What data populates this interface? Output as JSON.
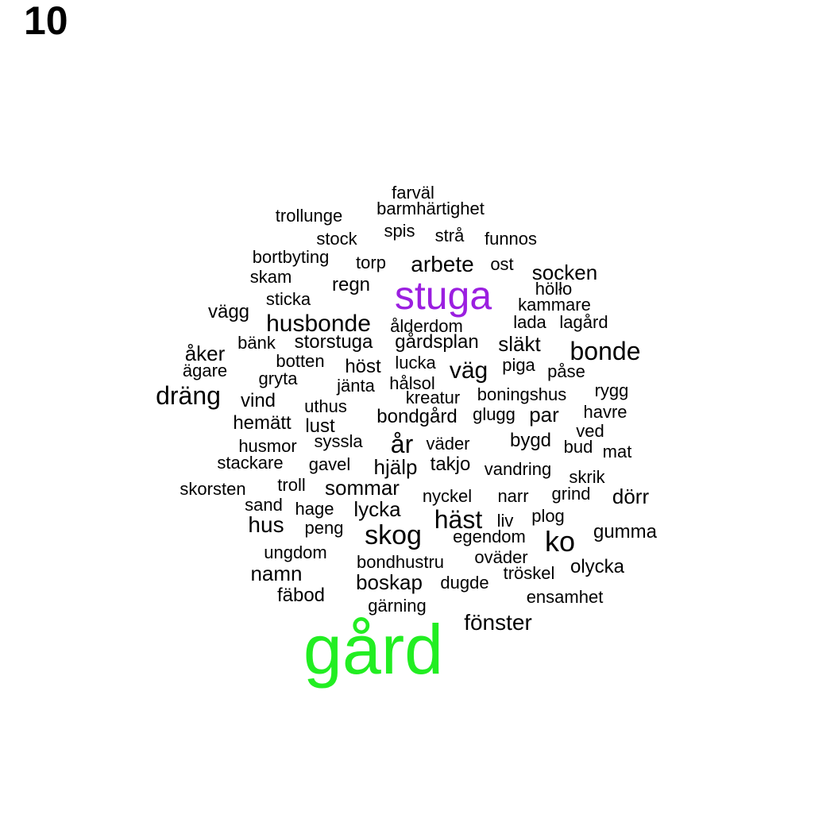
{
  "panel_label": "10",
  "colors": {
    "default": "#000000",
    "gård": "#22ee22",
    "stuga": "#9b1fe0"
  },
  "words": [
    {
      "text": "gård",
      "color": "gård"
    },
    {
      "text": "stuga",
      "color": "stuga"
    },
    {
      "text": "fönster"
    },
    {
      "text": "ko"
    },
    {
      "text": "skog"
    },
    {
      "text": "häst"
    },
    {
      "text": "bonde"
    },
    {
      "text": "dräng"
    },
    {
      "text": "år"
    },
    {
      "text": "husbonde"
    },
    {
      "text": "arbete"
    },
    {
      "text": "väg"
    },
    {
      "text": "hus"
    },
    {
      "text": "namn"
    },
    {
      "text": "dörr"
    },
    {
      "text": "sommar"
    },
    {
      "text": "hjälp"
    },
    {
      "text": "boskap"
    },
    {
      "text": "lycka"
    },
    {
      "text": "socken"
    },
    {
      "text": "släkt"
    },
    {
      "text": "bygd"
    },
    {
      "text": "gumma"
    },
    {
      "text": "olycka"
    },
    {
      "text": "par"
    },
    {
      "text": "åker"
    },
    {
      "text": "regn"
    },
    {
      "text": "vind"
    },
    {
      "text": "höst"
    },
    {
      "text": "vägg"
    },
    {
      "text": "lust"
    },
    {
      "text": "takjo"
    },
    {
      "text": "hemätt"
    },
    {
      "text": "bondgård"
    },
    {
      "text": "storstuga"
    },
    {
      "text": "gårdsplan"
    },
    {
      "text": "fäbod"
    },
    {
      "text": "husmor"
    },
    {
      "text": "ungdom"
    },
    {
      "text": "bondhustru"
    },
    {
      "text": "farväl"
    },
    {
      "text": "barmhärtighet"
    },
    {
      "text": "trollunge"
    },
    {
      "text": "spis"
    },
    {
      "text": "strå"
    },
    {
      "text": "stock"
    },
    {
      "text": "funnos"
    },
    {
      "text": "bortbyting"
    },
    {
      "text": "torp"
    },
    {
      "text": "ost"
    },
    {
      "text": "skam"
    },
    {
      "text": "hölło"
    },
    {
      "text": "sticka"
    },
    {
      "text": "kammare"
    },
    {
      "text": "ålderdom"
    },
    {
      "text": "lada"
    },
    {
      "text": "lagård"
    },
    {
      "text": "bänk"
    },
    {
      "text": "botten"
    },
    {
      "text": "lucka"
    },
    {
      "text": "piga"
    },
    {
      "text": "påse"
    },
    {
      "text": "ägare"
    },
    {
      "text": "gryta"
    },
    {
      "text": "jänta"
    },
    {
      "text": "hålsol"
    },
    {
      "text": "rygg"
    },
    {
      "text": "uthus"
    },
    {
      "text": "kreatur"
    },
    {
      "text": "boningshus"
    },
    {
      "text": "glugg"
    },
    {
      "text": "havre"
    },
    {
      "text": "ved"
    },
    {
      "text": "syssla"
    },
    {
      "text": "väder"
    },
    {
      "text": "bud"
    },
    {
      "text": "mat"
    },
    {
      "text": "stackare"
    },
    {
      "text": "gavel"
    },
    {
      "text": "vandring"
    },
    {
      "text": "skrik"
    },
    {
      "text": "skorsten"
    },
    {
      "text": "troll"
    },
    {
      "text": "nyckel"
    },
    {
      "text": "narr"
    },
    {
      "text": "grind"
    },
    {
      "text": "sand"
    },
    {
      "text": "hage"
    },
    {
      "text": "plog"
    },
    {
      "text": "liv"
    },
    {
      "text": "peng"
    },
    {
      "text": "egendom"
    },
    {
      "text": "oväder"
    },
    {
      "text": "tröskel"
    },
    {
      "text": "dugde"
    },
    {
      "text": "ensamhet"
    },
    {
      "text": "gärning"
    }
  ]
}
